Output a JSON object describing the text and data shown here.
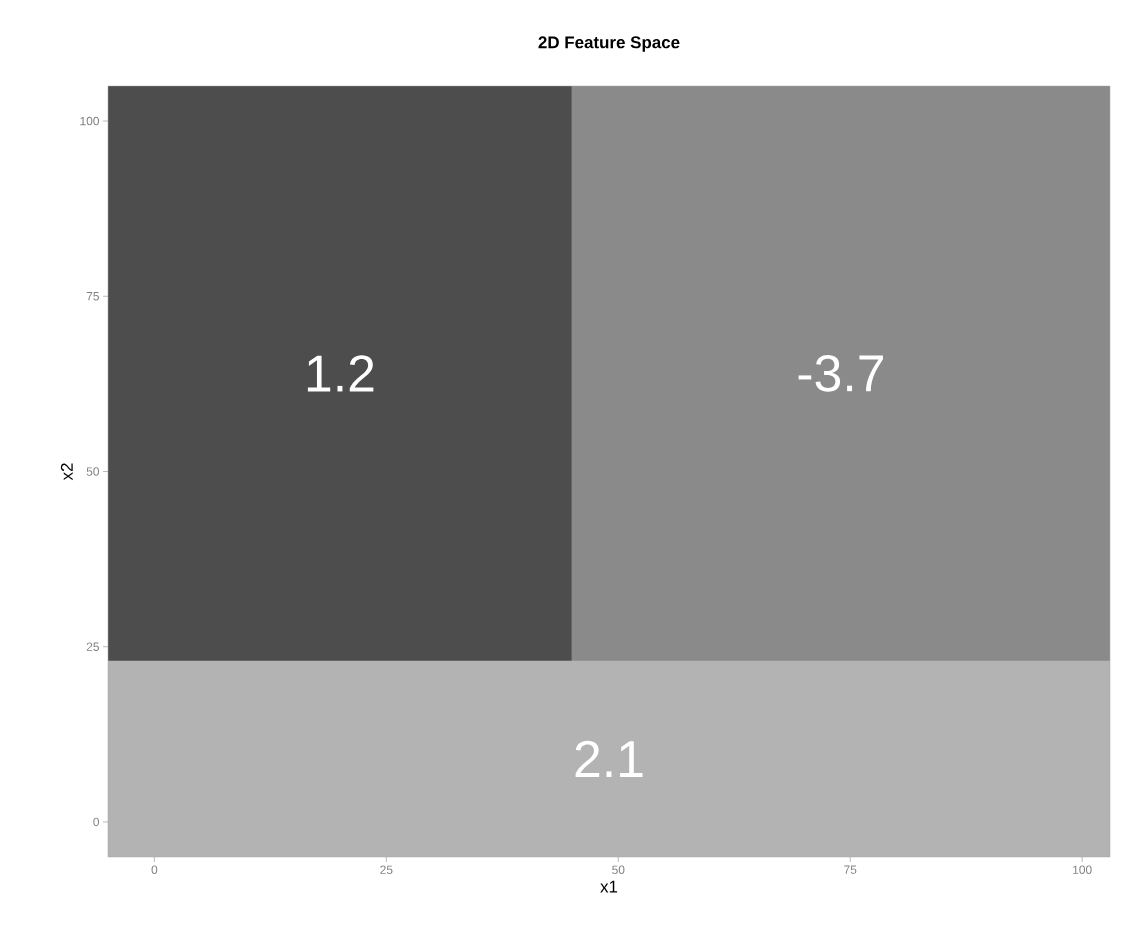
{
  "chart_data": {
    "type": "area",
    "title": "2D Feature Space",
    "xlabel": "x1",
    "ylabel": "x2",
    "xlim": [
      -5,
      103
    ],
    "ylim": [
      -5,
      105
    ],
    "xticks": [
      0,
      25,
      50,
      75,
      100
    ],
    "yticks": [
      0,
      25,
      50,
      75,
      100
    ],
    "bands": [
      {
        "axis": "x",
        "from": -5,
        "to": 45,
        "label": "1.2",
        "color": "#4d4d4d"
      },
      {
        "axis": "x",
        "from": 45,
        "to": 103,
        "label": "-3.7",
        "color": "#8a8a8a"
      },
      {
        "axis": "y",
        "from": -5,
        "to": 23,
        "label": "2.1",
        "color": "#b3b3b3"
      }
    ]
  }
}
